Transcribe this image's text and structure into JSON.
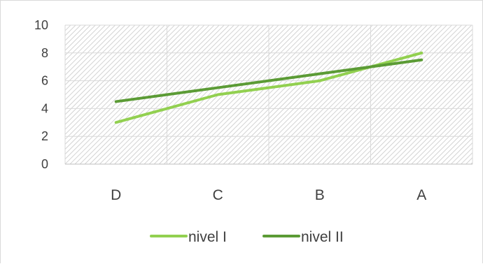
{
  "chart_data": {
    "type": "line",
    "categories": [
      "D",
      "C",
      "B",
      "A"
    ],
    "series": [
      {
        "name": "nivel I",
        "values": [
          3,
          5,
          6,
          8
        ],
        "color": "#92d050"
      },
      {
        "name": "nivel II",
        "values": [
          4.5,
          5.5,
          6.5,
          7.5
        ],
        "color": "#5b9b35"
      }
    ],
    "ylim": [
      0,
      10
    ],
    "yticks": [
      0,
      2,
      4,
      6,
      8,
      10
    ],
    "title": "",
    "xlabel": "",
    "ylabel": "",
    "grid": true,
    "plot_background": "hatched",
    "legend_position": "bottom"
  }
}
